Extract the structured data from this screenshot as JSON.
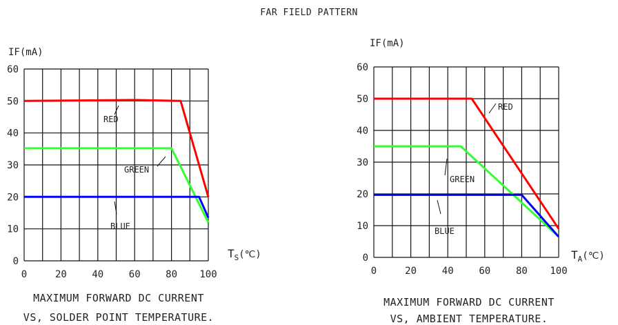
{
  "title": "FAR FIELD PATTERN",
  "chart_data": [
    {
      "type": "line",
      "ylabel": "IF(mA)",
      "xlabel_main": "T",
      "xlabel_sub": "S",
      "xlabel_unit": "(℃)",
      "xlim": [
        0,
        100
      ],
      "ylim": [
        0,
        60
      ],
      "xticks": [
        "0",
        "20",
        "40",
        "60",
        "80",
        "100"
      ],
      "yticks": [
        "0",
        "10",
        "20",
        "30",
        "40",
        "50",
        "60"
      ],
      "grid": true,
      "caption_line1": "MAXIMUM FORWARD DC CURRENT",
      "caption_line2": "VS, SOLDER POINT TEMPERATURE.",
      "series": [
        {
          "name": "RED",
          "color": "#ff0000",
          "points": [
            [
              0,
              50
            ],
            [
              60,
              50.3
            ],
            [
              85,
              50
            ],
            [
              100,
              20
            ]
          ]
        },
        {
          "name": "GREEN",
          "color": "#33ff33",
          "points": [
            [
              0,
              35.2
            ],
            [
              80,
              35.2
            ],
            [
              100,
              12
            ]
          ]
        },
        {
          "name": "BLUE",
          "color": "#0000ff",
          "points": [
            [
              0,
              20
            ],
            [
              95,
              20
            ],
            [
              100,
              13.5
            ]
          ]
        }
      ]
    },
    {
      "type": "line",
      "ylabel": "IF(mA)",
      "xlabel_main": "T",
      "xlabel_sub": "A",
      "xlabel_unit": "(℃)",
      "xlim": [
        0,
        100
      ],
      "ylim": [
        0,
        60
      ],
      "xticks": [
        "0",
        "20",
        "40",
        "60",
        "80",
        "100"
      ],
      "yticks": [
        "0",
        "10",
        "20",
        "30",
        "40",
        "50",
        "60"
      ],
      "grid": true,
      "caption_line1": "MAXIMUM FORWARD DC CURRENT",
      "caption_line2": "VS, AMBIENT TEMPERATURE.",
      "series": [
        {
          "name": "RED",
          "color": "#ff0000",
          "points": [
            [
              0,
              50
            ],
            [
              53,
              50
            ],
            [
              100,
              9
            ]
          ]
        },
        {
          "name": "GREEN",
          "color": "#33ff33",
          "points": [
            [
              0,
              35
            ],
            [
              47,
              35
            ],
            [
              100,
              6.5
            ]
          ]
        },
        {
          "name": "BLUE",
          "color": "#0000ff",
          "points": [
            [
              0,
              19.7
            ],
            [
              80,
              19.7
            ],
            [
              100,
              6.5
            ]
          ]
        }
      ]
    }
  ]
}
